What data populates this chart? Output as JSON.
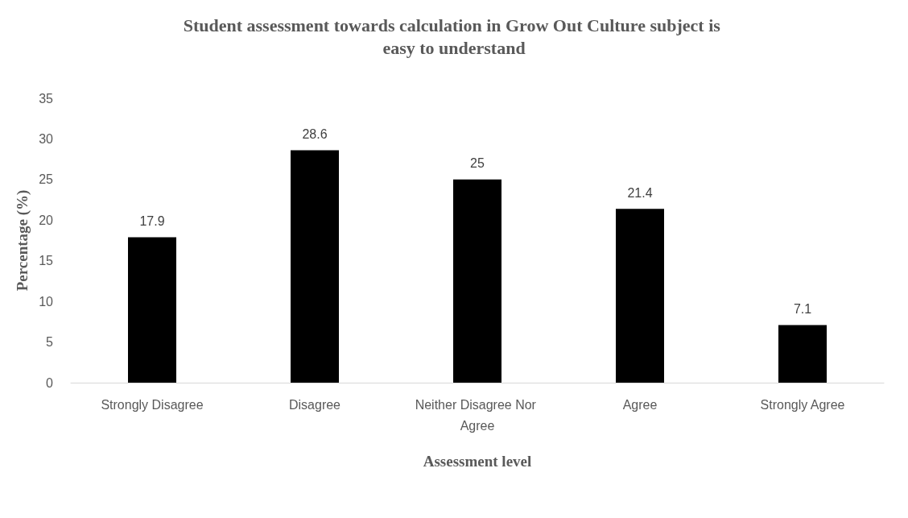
{
  "chart_data": {
    "type": "bar",
    "title": "Student assessment towards calculation in Grow Out Culture subject is easy to understand",
    "xlabel": "Assessment level",
    "ylabel": "Percentage (%)",
    "categories": [
      "Strongly Disagree",
      "Disagree",
      "Neither Disagree Nor Agree",
      "Agree",
      "Strongly Agree"
    ],
    "values": [
      17.9,
      28.6,
      25,
      21.4,
      7.1
    ],
    "color": "#000000",
    "ylim": [
      0,
      35
    ],
    "yticks": [
      0,
      5,
      10,
      15,
      20,
      25,
      30,
      35
    ],
    "grid": false,
    "data_labels": true
  }
}
